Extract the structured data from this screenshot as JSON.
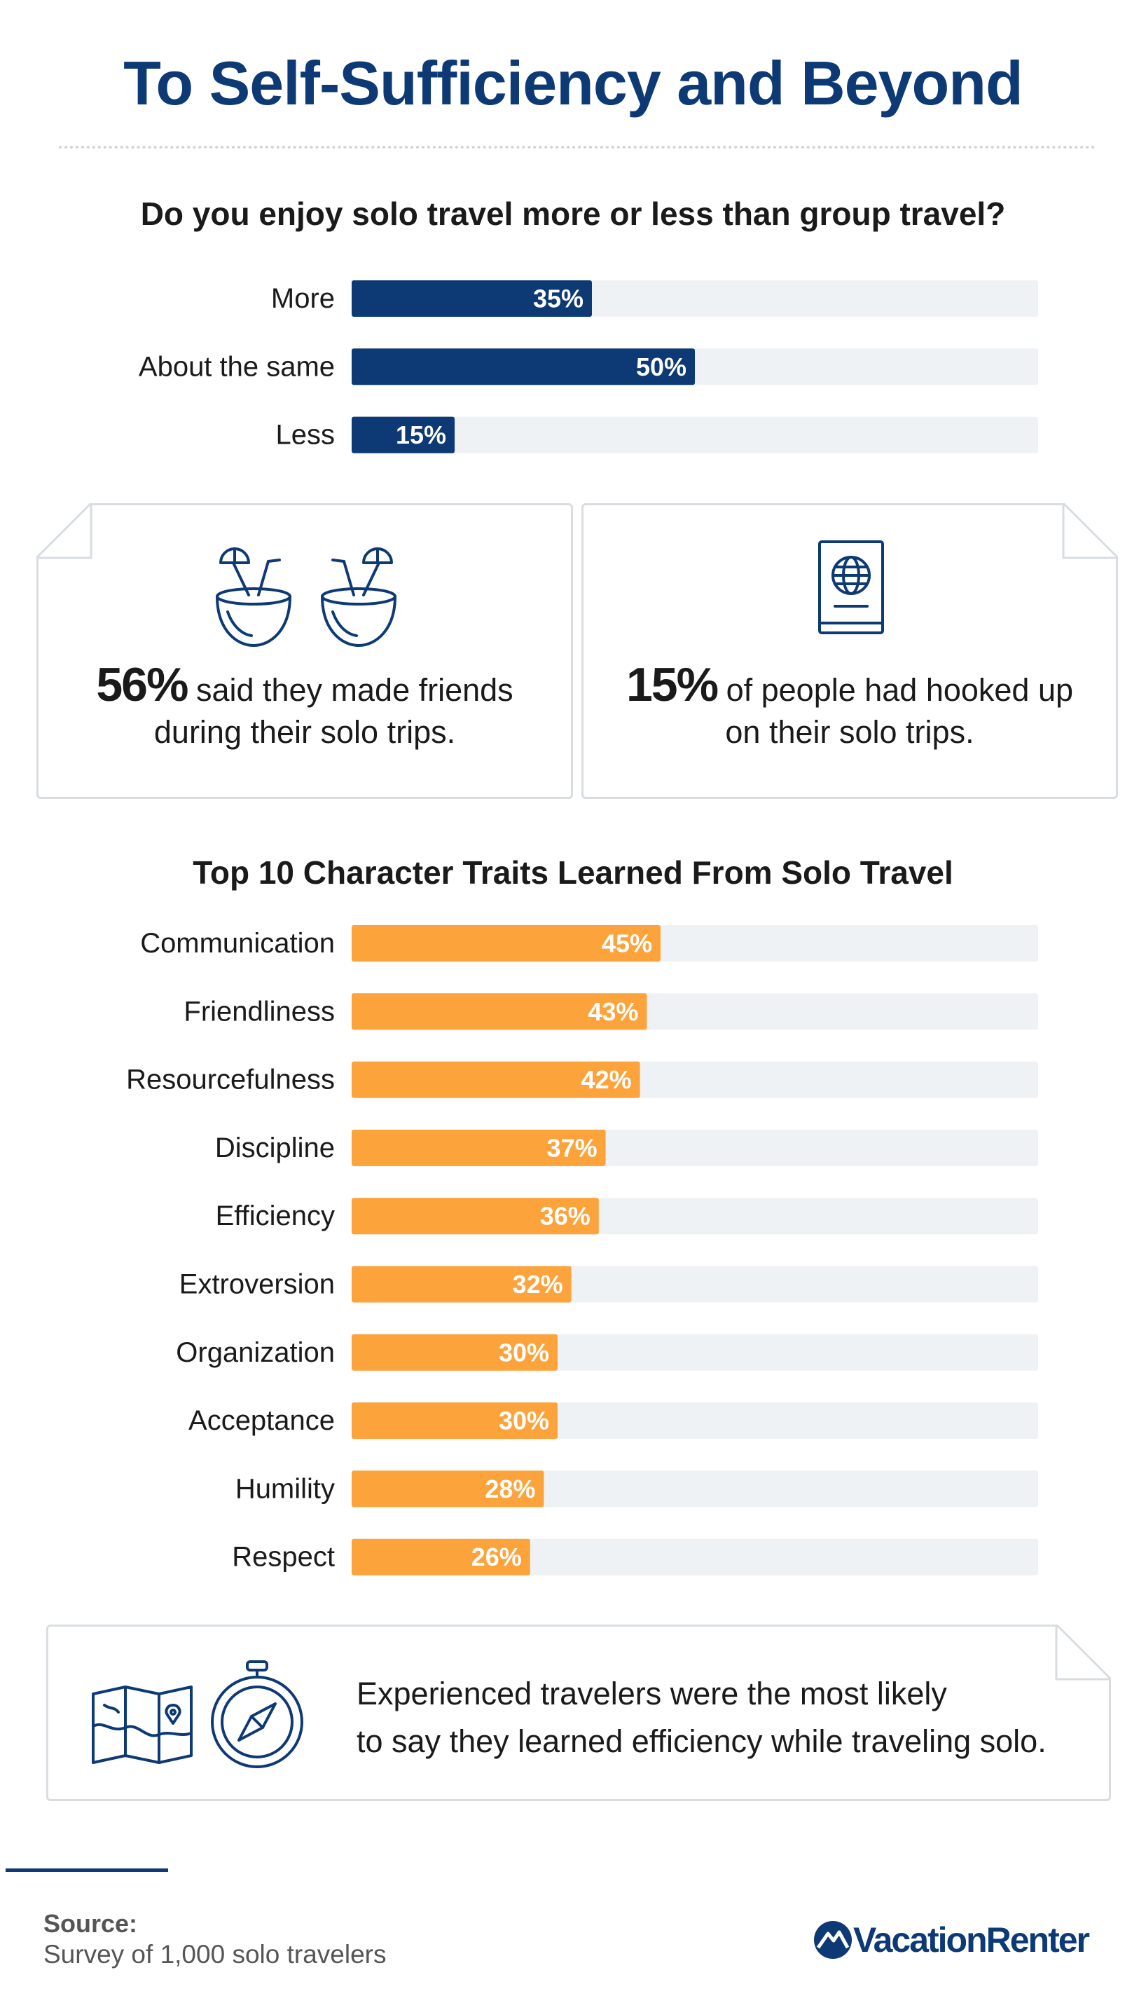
{
  "title": "To Self-Sufficiency and Beyond",
  "chart_data": [
    {
      "type": "bar",
      "orientation": "horizontal",
      "title": "Do you enjoy solo travel more or less than group travel?",
      "categories": [
        "More",
        "About the same",
        "Less"
      ],
      "values": [
        35,
        50,
        15
      ],
      "value_labels": [
        "35%",
        "50%",
        "15%"
      ],
      "xlim": [
        0,
        100
      ],
      "color": "#0d3a75",
      "track_color": "#eff2f5"
    },
    {
      "type": "bar",
      "orientation": "horizontal",
      "title": "Top 10 Character Traits Learned From Solo Travel",
      "categories": [
        "Communication",
        "Friendliness",
        "Resourcefulness",
        "Discipline",
        "Efficiency",
        "Extroversion",
        "Organization",
        "Acceptance",
        "Humility",
        "Respect"
      ],
      "values": [
        45,
        43,
        42,
        37,
        36,
        32,
        30,
        30,
        28,
        26
      ],
      "value_labels": [
        "45%",
        "43%",
        "42%",
        "37%",
        "36%",
        "32%",
        "30%",
        "30%",
        "28%",
        "26%"
      ],
      "xlim": [
        0,
        100
      ],
      "color": "#fca33b",
      "track_color": "#eff2f5"
    }
  ],
  "callouts": {
    "friends": {
      "big": "56%",
      "line1": "said they made friends",
      "line2": "during their solo trips.",
      "icon": "coconut-drinks-icon"
    },
    "hookup": {
      "big": "15%",
      "line1": "of people had hooked up",
      "line2": "on their solo trips.",
      "icon": "passport-icon"
    },
    "note": {
      "line1": "Experienced travelers were the most likely",
      "line2": "to say they learned efficiency while traveling solo.",
      "icons": [
        "map-icon",
        "compass-icon"
      ]
    }
  },
  "footer": {
    "source_label": "Source:",
    "source_text": "Survey of 1,000 solo travelers",
    "brand": "VacationRenter"
  },
  "colors": {
    "navy": "#0d3a75",
    "orange": "#fca33b",
    "track": "#eff2f5"
  }
}
